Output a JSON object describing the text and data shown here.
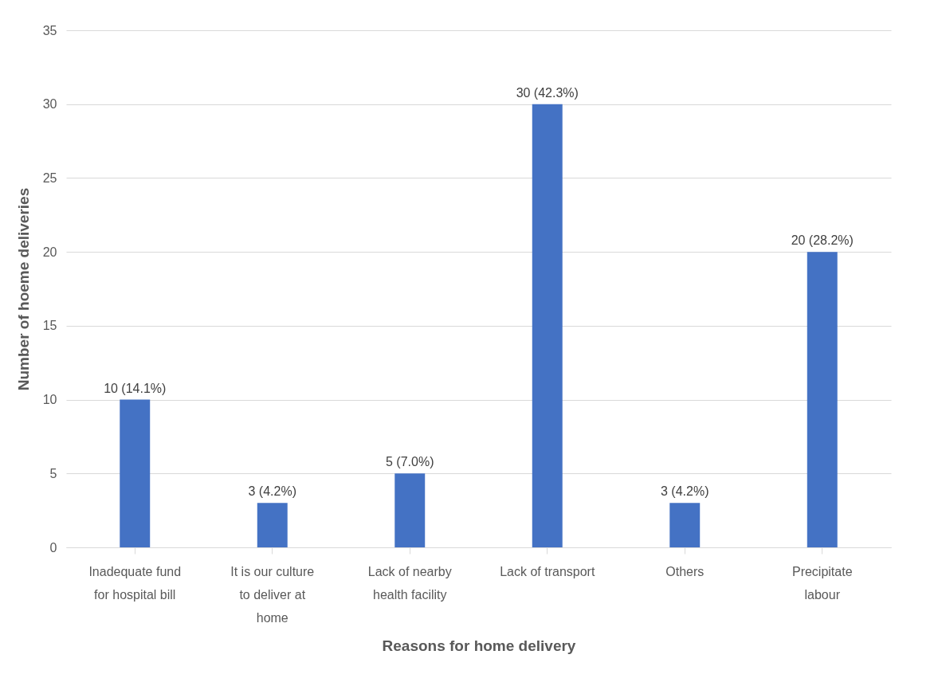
{
  "chart_data": {
    "type": "bar",
    "xlabel": "Reasons for home delivery",
    "ylabel": "Number of hoeme deliveries",
    "categories": [
      "Inadequate fund for hospital bill",
      "It is our culture to deliver at home",
      "Lack of nearby health facility",
      "Lack of transport",
      "Others",
      "Precipitate labour"
    ],
    "values": [
      10,
      3,
      5,
      30,
      3,
      20
    ],
    "value_labels": [
      "10 (14.1%)",
      "3 (4.2%)",
      "5 (7.0%)",
      "30 (42.3%)",
      "3 (4.2%)",
      "20 (28.2%)"
    ],
    "color": "#4472c4",
    "ylim": [
      0,
      35
    ],
    "yticks": [
      0,
      5,
      10,
      15,
      20,
      25,
      30,
      35
    ],
    "grid": "y"
  }
}
